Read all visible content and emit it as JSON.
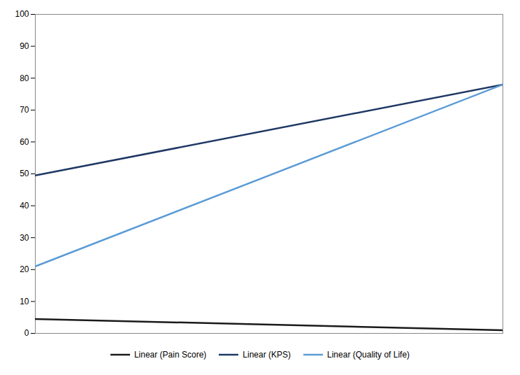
{
  "chart_data": {
    "type": "line",
    "x": [
      0,
      1
    ],
    "series": [
      {
        "name": "Linear (Pain Score)",
        "color": "#1a1a1a",
        "values": [
          4.5,
          1.0
        ]
      },
      {
        "name": "Linear (KPS)",
        "color": "#1f3864",
        "values": [
          49.5,
          78.0
        ]
      },
      {
        "name": "Linear (Quality of Life)",
        "color": "#5b9bd5",
        "values": [
          21.0,
          78.0
        ]
      }
    ],
    "xlim": [
      0,
      1
    ],
    "ylim": [
      0,
      100
    ],
    "yticks": [
      0,
      10,
      20,
      30,
      40,
      50,
      60,
      70,
      80,
      90,
      100
    ],
    "grid": false,
    "legend": "bottom",
    "tick_labels": "y"
  }
}
